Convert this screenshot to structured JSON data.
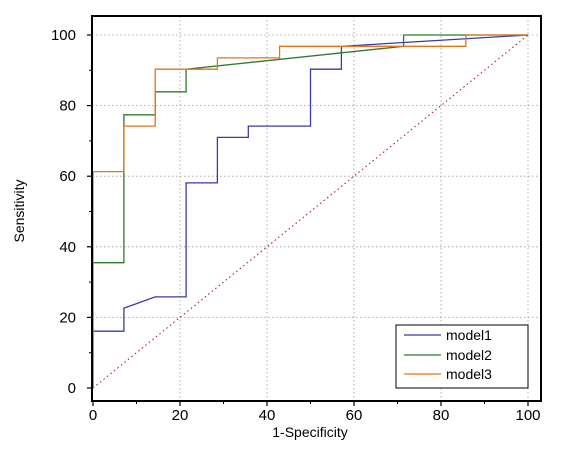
{
  "chart_data": {
    "type": "line",
    "xlabel": "1-Specificity",
    "ylabel": "Sensitivity",
    "xlim": [
      0,
      100
    ],
    "ylim": [
      0,
      100
    ],
    "xticks": [
      0,
      20,
      40,
      60,
      80,
      100
    ],
    "yticks": [
      0,
      20,
      40,
      60,
      80,
      100
    ],
    "xtick_labels": [
      "0",
      "20",
      "40",
      "60",
      "80",
      "100"
    ],
    "ytick_labels": [
      "0",
      "20",
      "40",
      "60",
      "80",
      "100"
    ],
    "grid": true,
    "legend_position": "bottom-right",
    "reference_line": {
      "style": "dotted",
      "color": "#b22222",
      "x": [
        0,
        100
      ],
      "y": [
        0,
        100
      ]
    },
    "series": [
      {
        "name": "model1",
        "color": "#3a3aa8",
        "x": [
          0,
          0,
          7.1,
          7.1,
          14.3,
          21.4,
          21.4,
          28.6,
          28.6,
          35.7,
          35.7,
          50,
          50,
          57.1,
          57.1,
          100
        ],
        "y": [
          0,
          16.1,
          16.1,
          22.6,
          25.8,
          25.8,
          58.1,
          58.1,
          71.0,
          71.0,
          74.2,
          74.2,
          90.3,
          90.3,
          96.8,
          100
        ]
      },
      {
        "name": "model2",
        "color": "#2f7a2f",
        "x": [
          0,
          0,
          7.1,
          7.1,
          14.3,
          14.3,
          21.4,
          21.4,
          71.4,
          71.4,
          78.6,
          78.6,
          85.7,
          85.7,
          100
        ],
        "y": [
          0,
          35.5,
          35.5,
          77.4,
          77.4,
          83.9,
          83.9,
          90.3,
          96.8,
          100,
          100,
          100,
          100,
          100,
          100
        ]
      },
      {
        "name": "model3",
        "color": "#e0761f",
        "x": [
          0,
          0,
          7.1,
          7.1,
          14.3,
          14.3,
          28.6,
          28.6,
          42.9,
          42.9,
          85.7,
          85.7,
          100
        ],
        "y": [
          0,
          61.3,
          61.3,
          74.2,
          74.2,
          90.3,
          90.3,
          93.5,
          93.5,
          96.8,
          96.8,
          100,
          100
        ]
      }
    ]
  }
}
